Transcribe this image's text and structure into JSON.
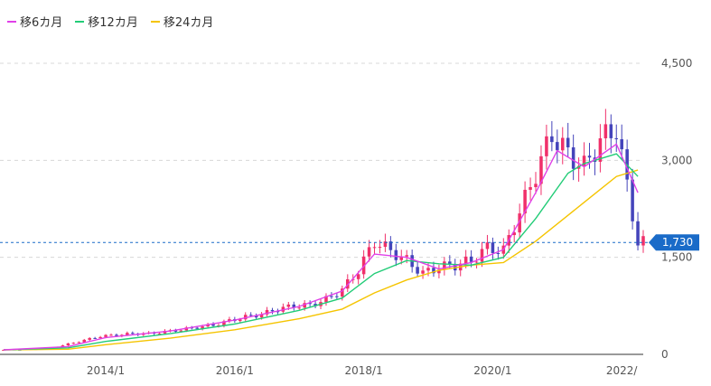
{
  "chart_data": {
    "type": "candlestick",
    "legend": [
      {
        "label": "移6カ月",
        "color": "#e040e8"
      },
      {
        "label": "移12カ月",
        "color": "#22cc77"
      },
      {
        "label": "移24カ月",
        "color": "#f5c400"
      }
    ],
    "yticks": [
      "4,500",
      "3,000",
      "1,500",
      "0"
    ],
    "ytick_values": [
      4500,
      3000,
      1500,
      0
    ],
    "xticks": [
      "2014/1",
      "2016/1",
      "2018/1",
      "2020/1",
      "2022/"
    ],
    "xtick_dates": [
      "2014-01",
      "2016-01",
      "2018-01",
      "2020-01",
      "2022-01"
    ],
    "ylim": [
      0,
      4500
    ],
    "current_price": 1730,
    "current_price_label": "1,730",
    "up_color": "#f0306a",
    "down_color": "#4444bb",
    "grid": true,
    "monthly_close": [
      [
        "2012-06",
        70
      ],
      [
        "2012-09",
        75
      ],
      [
        "2012-12",
        80
      ],
      [
        "2013-03",
        100
      ],
      [
        "2013-06",
        160
      ],
      [
        "2013-09",
        220
      ],
      [
        "2013-12",
        280
      ],
      [
        "2014-03",
        300
      ],
      [
        "2014-06",
        320
      ],
      [
        "2014-09",
        320
      ],
      [
        "2014-12",
        350
      ],
      [
        "2015-03",
        380
      ],
      [
        "2015-06",
        420
      ],
      [
        "2015-09",
        450
      ],
      [
        "2015-12",
        520
      ],
      [
        "2016-03",
        580
      ],
      [
        "2016-06",
        620
      ],
      [
        "2016-09",
        700
      ],
      [
        "2016-12",
        750
      ],
      [
        "2017-03",
        760
      ],
      [
        "2017-06",
        850
      ],
      [
        "2017-09",
        1000
      ],
      [
        "2017-12",
        1300
      ],
      [
        "2018-03",
        1750
      ],
      [
        "2018-06",
        1600
      ],
      [
        "2018-09",
        1450
      ],
      [
        "2018-12",
        1250
      ],
      [
        "2019-03",
        1350
      ],
      [
        "2019-06",
        1380
      ],
      [
        "2019-09",
        1450
      ],
      [
        "2019-12",
        1650
      ],
      [
        "2020-03",
        1600
      ],
      [
        "2020-06",
        2200
      ],
      [
        "2020-09",
        2800
      ],
      [
        "2020-12",
        3400
      ],
      [
        "2021-03",
        3100
      ],
      [
        "2021-06",
        2900
      ],
      [
        "2021-09",
        3300
      ],
      [
        "2021-12",
        3500
      ],
      [
        "2022-02",
        2600
      ],
      [
        "2022-04",
        1730
      ]
    ],
    "ma6": [
      [
        "2012-06",
        70
      ],
      [
        "2013-06",
        120
      ],
      [
        "2014-01",
        260
      ],
      [
        "2015-01",
        360
      ],
      [
        "2016-01",
        530
      ],
      [
        "2017-01",
        740
      ],
      [
        "2017-09",
        980
      ],
      [
        "2018-03",
        1550
      ],
      [
        "2018-09",
        1500
      ],
      [
        "2019-03",
        1320
      ],
      [
        "2019-09",
        1420
      ],
      [
        "2020-03",
        1620
      ],
      [
        "2020-09",
        2500
      ],
      [
        "2021-01",
        3150
      ],
      [
        "2021-06",
        2900
      ],
      [
        "2021-12",
        3250
      ],
      [
        "2022-04",
        2500
      ]
    ],
    "ma12": [
      [
        "2012-06",
        70
      ],
      [
        "2013-06",
        100
      ],
      [
        "2014-01",
        200
      ],
      [
        "2015-01",
        320
      ],
      [
        "2016-01",
        470
      ],
      [
        "2017-01",
        680
      ],
      [
        "2017-09",
        870
      ],
      [
        "2018-03",
        1250
      ],
      [
        "2018-09",
        1450
      ],
      [
        "2019-03",
        1400
      ],
      [
        "2019-09",
        1380
      ],
      [
        "2020-03",
        1500
      ],
      [
        "2020-09",
        2100
      ],
      [
        "2021-03",
        2800
      ],
      [
        "2021-06",
        2950
      ],
      [
        "2021-12",
        3100
      ],
      [
        "2022-04",
        2750
      ]
    ],
    "ma24": [
      [
        "2012-06",
        70
      ],
      [
        "2013-06",
        80
      ],
      [
        "2014-01",
        150
      ],
      [
        "2015-01",
        250
      ],
      [
        "2016-01",
        380
      ],
      [
        "2017-01",
        550
      ],
      [
        "2017-09",
        700
      ],
      [
        "2018-03",
        950
      ],
      [
        "2018-09",
        1150
      ],
      [
        "2019-03",
        1300
      ],
      [
        "2019-09",
        1380
      ],
      [
        "2020-03",
        1420
      ],
      [
        "2020-09",
        1750
      ],
      [
        "2021-03",
        2150
      ],
      [
        "2021-06",
        2350
      ],
      [
        "2021-12",
        2750
      ],
      [
        "2022-04",
        2850
      ]
    ]
  }
}
